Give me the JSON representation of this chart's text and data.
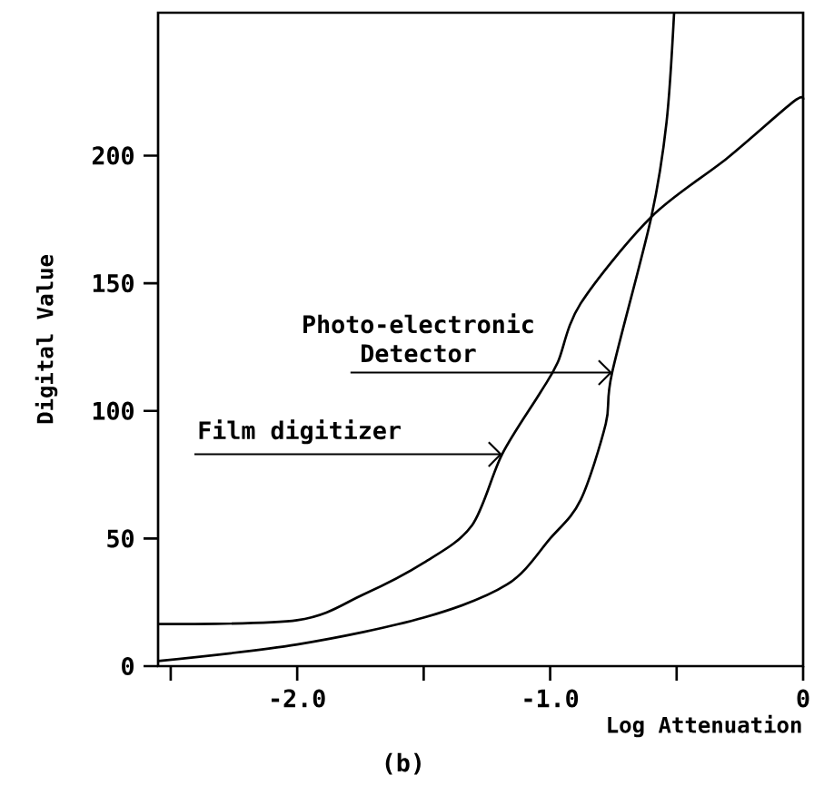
{
  "chart_data": {
    "type": "line",
    "xlabel": "Log Attenuation",
    "ylabel": "Digital Value",
    "xlim": [
      -2.55,
      0
    ],
    "ylim": [
      0,
      256
    ],
    "xticks": [
      {
        "value": -2.5,
        "label": null
      },
      {
        "value": -2,
        "label": "-2.0"
      },
      {
        "value": -1.5,
        "label": null
      },
      {
        "value": -1,
        "label": "-1.0"
      },
      {
        "value": -0.5,
        "label": null
      },
      0
    ],
    "yticks": [
      0,
      50,
      100,
      150,
      200
    ],
    "marker": "none",
    "line_style": "solid",
    "series": [
      {
        "color": "#000000",
        "x": [
          -2.55,
          -2.0,
          -1.74,
          -1.5,
          -1.31,
          -1.19,
          -1.04,
          -0.97,
          -0.88,
          -0.6,
          -0.3,
          -0.04,
          0
        ],
        "values": [
          16.5,
          18,
          28,
          40.5,
          55,
          83,
          107,
          119,
          142,
          176,
          199,
          221,
          222
        ]
      },
      {
        "color": "#000000",
        "x": [
          -2.55,
          -2.0,
          -1.5,
          -1.17,
          -1.0,
          -0.88,
          -0.78,
          -0.755,
          -0.6,
          -0.54,
          -0.51
        ],
        "values": [
          2,
          8.5,
          19,
          32,
          50,
          65,
          95,
          115,
          176,
          213,
          256
        ]
      }
    ],
    "annotations": [
      {
        "text": "Photo-electronic Detector",
        "x": -0.755,
        "y": 115
      },
      {
        "text": "Film digitizer",
        "x": -1.19,
        "y": 83
      },
      "(b)"
    ]
  }
}
